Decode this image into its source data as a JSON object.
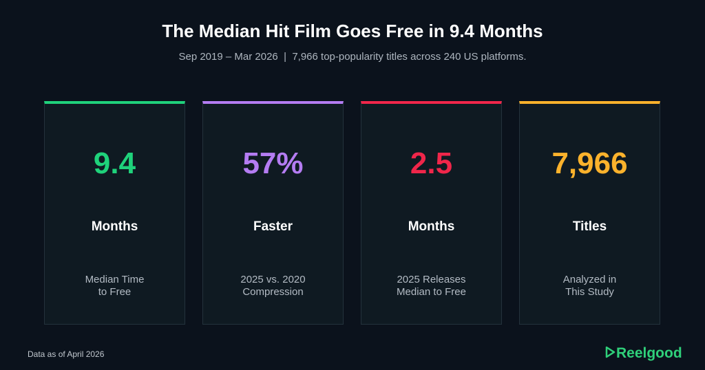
{
  "header": {
    "title": "The Median Hit Film Goes Free in 9.4 Months",
    "subtitle": "Sep 2019 – Mar 2026  |  7,966 top-popularity titles across 240 US platforms."
  },
  "cards": [
    {
      "value": "9.4",
      "unit": "Months",
      "description": [
        "Median Time",
        "to Free"
      ],
      "color": "#1fd27b"
    },
    {
      "value": "57%",
      "unit": "Faster",
      "description": [
        "2025 vs. 2020",
        "Compression"
      ],
      "color": "#b47cf2"
    },
    {
      "value": "2.5",
      "unit": "Months",
      "description": [
        "2025 Releases",
        "Median to Free"
      ],
      "color": "#f0264a"
    },
    {
      "value": "7,966",
      "unit": "Titles",
      "description": [
        "Analyzed in",
        "This Study"
      ],
      "color": "#fbb22c"
    }
  ],
  "footer": {
    "note": "Data as of April 2026",
    "brand": "Reelgood"
  }
}
